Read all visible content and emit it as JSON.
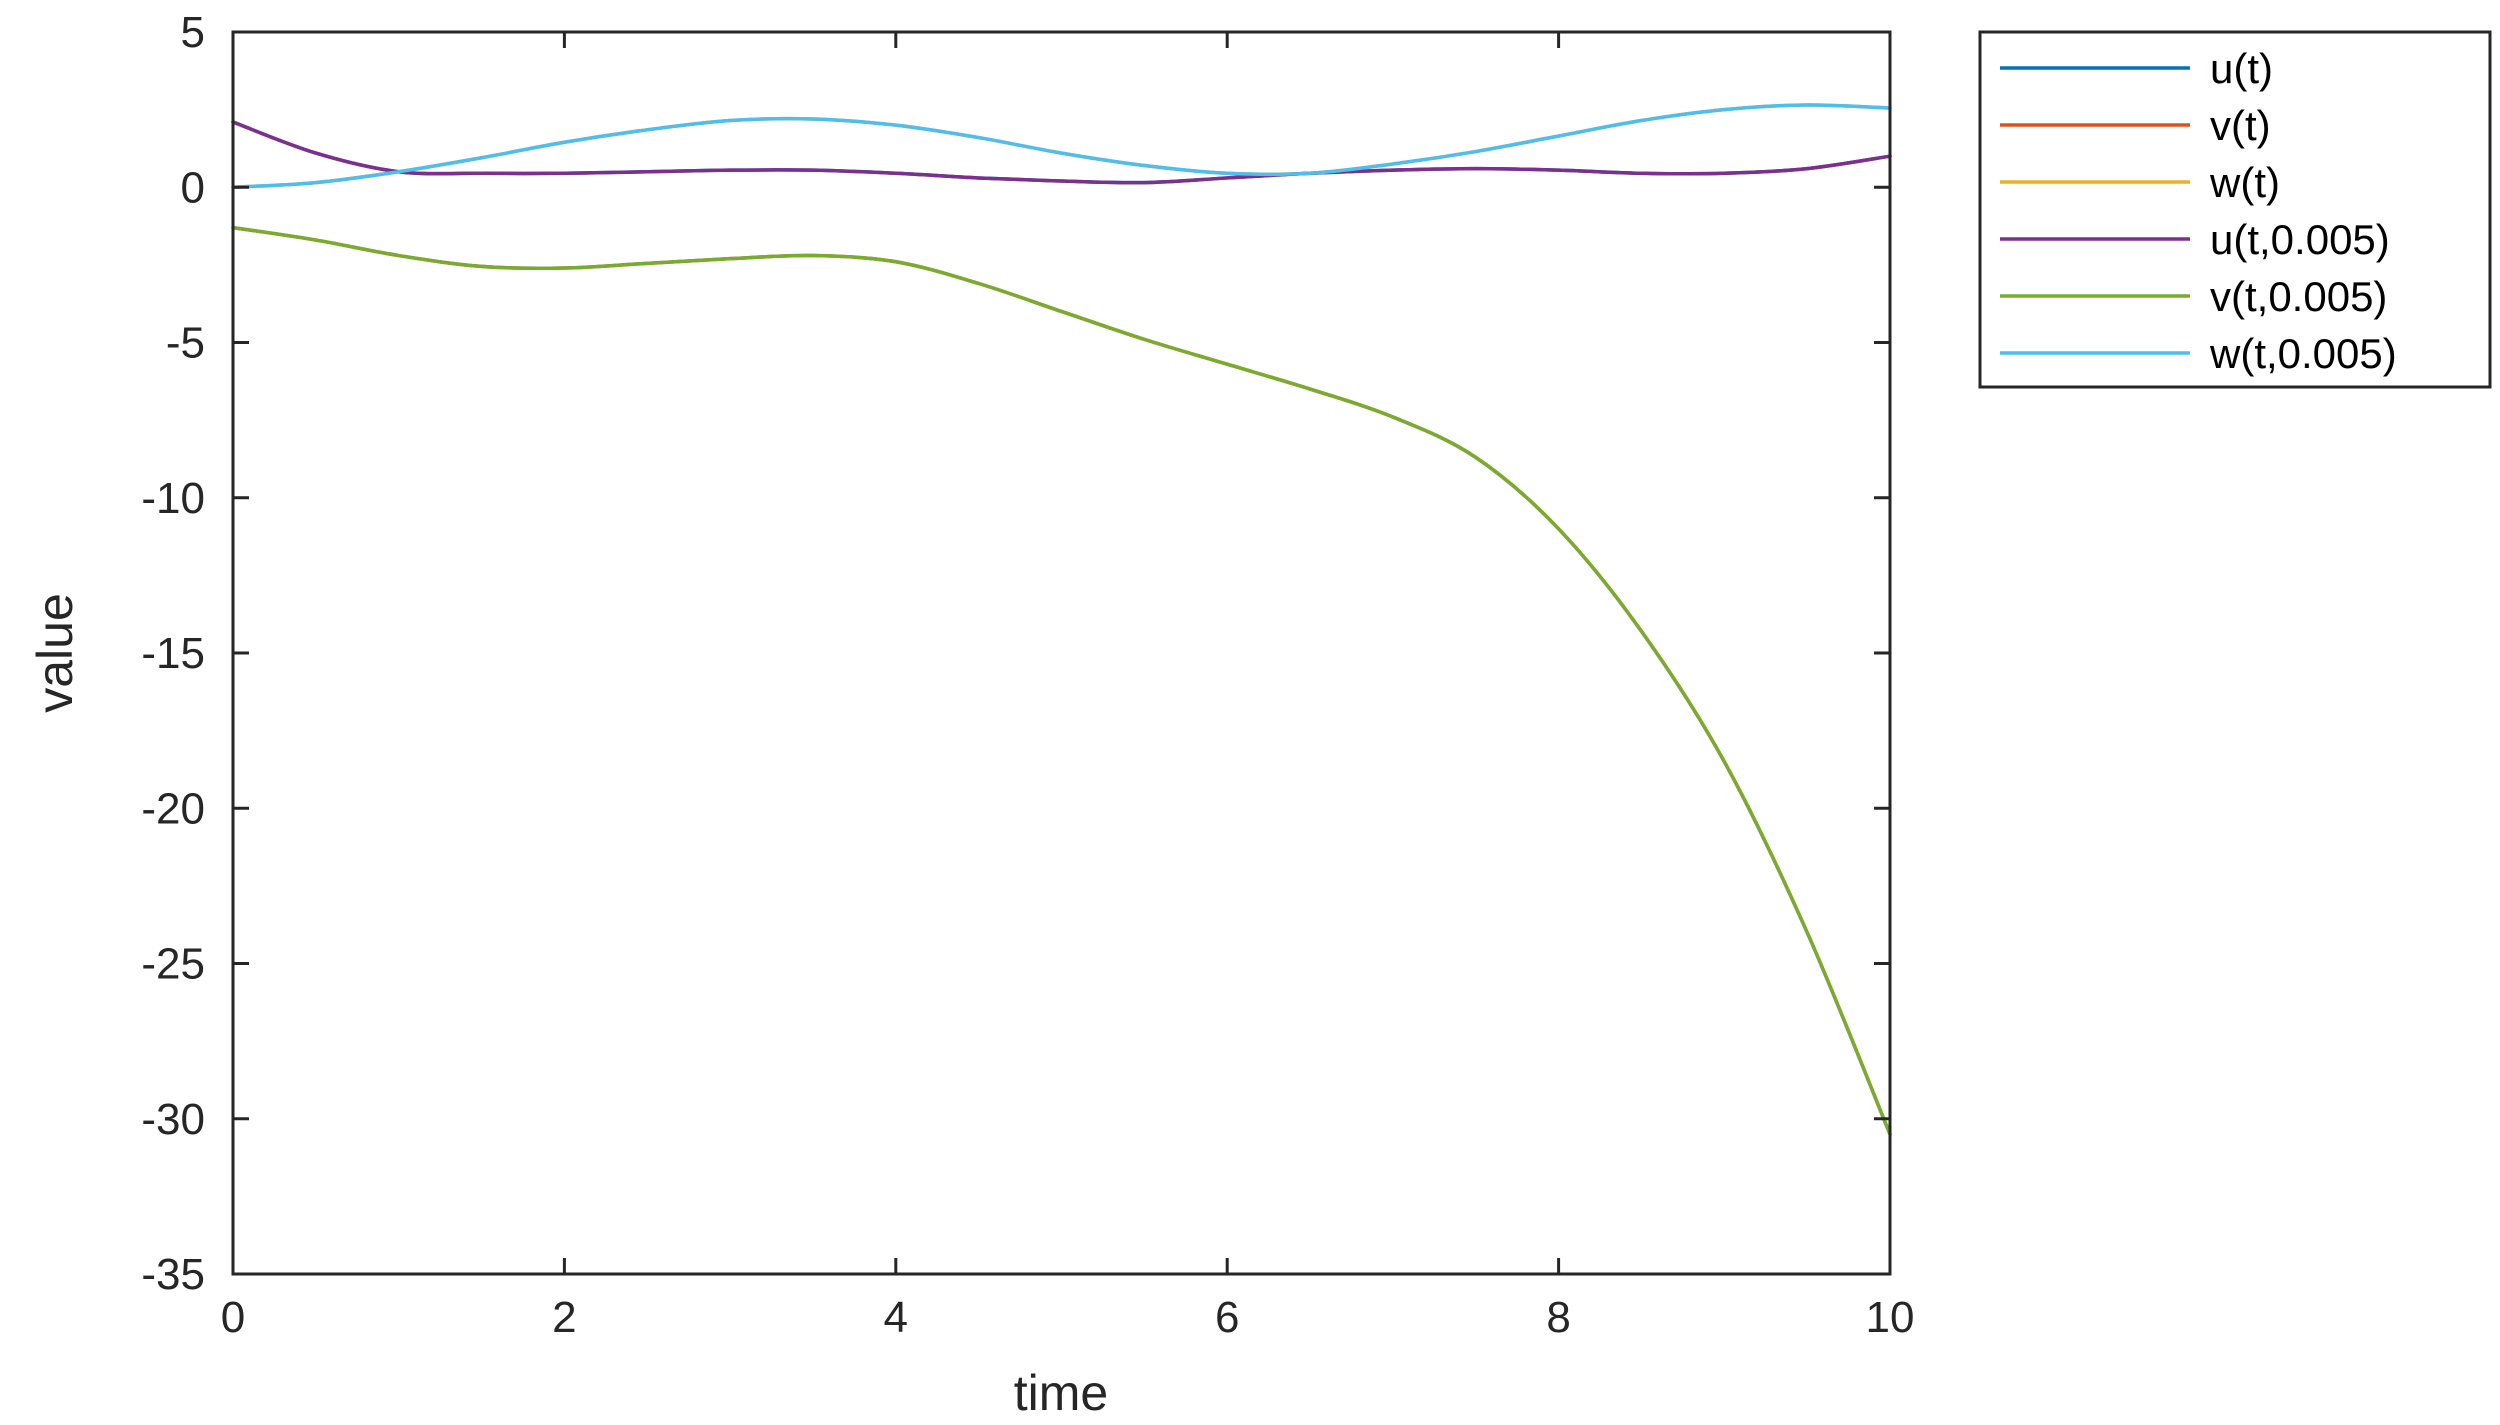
{
  "chart_data": {
    "type": "line",
    "title": "",
    "xlabel": "time",
    "ylabel": "value",
    "xlim": [
      0,
      10
    ],
    "ylim": [
      -35,
      5
    ],
    "xticks": [
      0,
      2,
      4,
      6,
      8,
      10
    ],
    "yticks": [
      5,
      0,
      -5,
      -10,
      -15,
      -20,
      -25,
      -30,
      -35
    ],
    "grid": false,
    "legend_position": "outside-top-right",
    "series": [
      {
        "name": "u(t)",
        "color": "#0072BD",
        "x": [
          0,
          0.5,
          1,
          1.5,
          2,
          2.5,
          3,
          3.5,
          4,
          4.5,
          5,
          5.5,
          6,
          6.5,
          7,
          7.5,
          8,
          8.5,
          9,
          9.5,
          10
        ],
        "y": [
          2.1,
          1.1,
          0.5,
          0.45,
          0.45,
          0.5,
          0.55,
          0.55,
          0.45,
          0.3,
          0.2,
          0.15,
          0.3,
          0.45,
          0.55,
          0.6,
          0.55,
          0.45,
          0.45,
          0.6,
          1.0
        ]
      },
      {
        "name": "v(t)",
        "color": "#D95319",
        "x": [
          0,
          0.5,
          1,
          1.5,
          2,
          2.5,
          3,
          3.5,
          4,
          4.5,
          5,
          5.5,
          6,
          6.5,
          7,
          7.5,
          8,
          8.5,
          9,
          9.5,
          10
        ],
        "y": [
          -1.3,
          -1.7,
          -2.2,
          -2.55,
          -2.6,
          -2.45,
          -2.3,
          -2.2,
          -2.4,
          -3.1,
          -4.0,
          -4.9,
          -5.7,
          -6.5,
          -7.4,
          -8.7,
          -11.0,
          -14.3,
          -18.5,
          -24.0,
          -30.5
        ]
      },
      {
        "name": "w(t)",
        "color": "#EDB120",
        "x": [
          0,
          0.5,
          1,
          1.5,
          2,
          2.5,
          3,
          3.5,
          4,
          4.5,
          5,
          5.5,
          6,
          6.5,
          7,
          7.5,
          8,
          8.5,
          9,
          9.5,
          10
        ],
        "y": [
          0.0,
          0.15,
          0.5,
          0.95,
          1.45,
          1.85,
          2.15,
          2.2,
          2.0,
          1.6,
          1.1,
          0.7,
          0.45,
          0.45,
          0.75,
          1.15,
          1.65,
          2.15,
          2.5,
          2.65,
          2.55
        ]
      },
      {
        "name": "u(t,0.005)",
        "color": "#7E2F8E",
        "x": [
          0,
          0.5,
          1,
          1.5,
          2,
          2.5,
          3,
          3.5,
          4,
          4.5,
          5,
          5.5,
          6,
          6.5,
          7,
          7.5,
          8,
          8.5,
          9,
          9.5,
          10
        ],
        "y": [
          2.1,
          1.1,
          0.5,
          0.45,
          0.45,
          0.5,
          0.55,
          0.55,
          0.45,
          0.3,
          0.2,
          0.15,
          0.3,
          0.45,
          0.55,
          0.6,
          0.55,
          0.45,
          0.45,
          0.6,
          1.0
        ]
      },
      {
        "name": "v(t,0.005)",
        "color": "#77AC30",
        "x": [
          0,
          0.5,
          1,
          1.5,
          2,
          2.5,
          3,
          3.5,
          4,
          4.5,
          5,
          5.5,
          6,
          6.5,
          7,
          7.5,
          8,
          8.5,
          9,
          9.5,
          10
        ],
        "y": [
          -1.3,
          -1.7,
          -2.2,
          -2.55,
          -2.6,
          -2.45,
          -2.3,
          -2.2,
          -2.4,
          -3.1,
          -4.0,
          -4.9,
          -5.7,
          -6.5,
          -7.4,
          -8.7,
          -11.0,
          -14.3,
          -18.5,
          -24.0,
          -30.5
        ]
      },
      {
        "name": "w(t,0.005)",
        "color": "#4DBEEE",
        "x": [
          0,
          0.5,
          1,
          1.5,
          2,
          2.5,
          3,
          3.5,
          4,
          4.5,
          5,
          5.5,
          6,
          6.5,
          7,
          7.5,
          8,
          8.5,
          9,
          9.5,
          10
        ],
        "y": [
          0.0,
          0.15,
          0.5,
          0.95,
          1.45,
          1.85,
          2.15,
          2.2,
          2.0,
          1.6,
          1.1,
          0.7,
          0.45,
          0.45,
          0.75,
          1.15,
          1.65,
          2.15,
          2.5,
          2.65,
          2.55
        ]
      }
    ]
  }
}
